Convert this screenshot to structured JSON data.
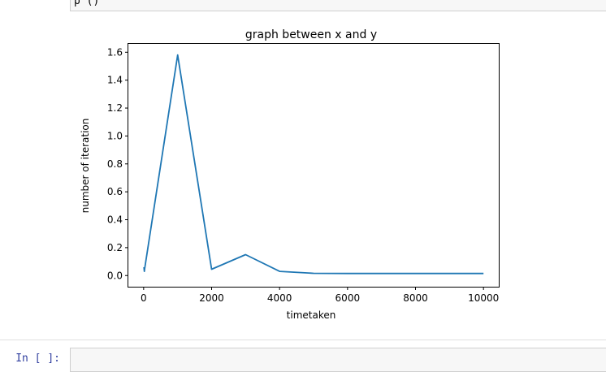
{
  "previous_cell": {
    "code_fragment": "p        ()"
  },
  "next_cell": {
    "prompt": "In [ ]:",
    "code": ""
  },
  "chart_data": {
    "type": "line",
    "title": "graph between x and y",
    "xlabel": "timetaken",
    "ylabel": "number of iteration",
    "x": [
      10,
      20,
      30,
      1000,
      2000,
      3000,
      4000,
      5000,
      6000,
      7000,
      8000,
      9000,
      10000
    ],
    "series": [
      {
        "values": [
          0.06,
          0.03,
          0.05,
          1.58,
          0.045,
          0.15,
          0.03,
          0.016,
          0.015,
          0.015,
          0.015,
          0.015,
          0.015
        ]
      }
    ],
    "xlim": [
      -450,
      10450
    ],
    "ylim": [
      -0.08,
      1.66
    ],
    "xticks": [
      0,
      2000,
      4000,
      6000,
      8000,
      10000
    ],
    "yticks": [
      0.0,
      0.2,
      0.4,
      0.6,
      0.8,
      1.0,
      1.2,
      1.4,
      1.6
    ],
    "line_color": "#1f77b4",
    "grid": false,
    "legend": false
  }
}
